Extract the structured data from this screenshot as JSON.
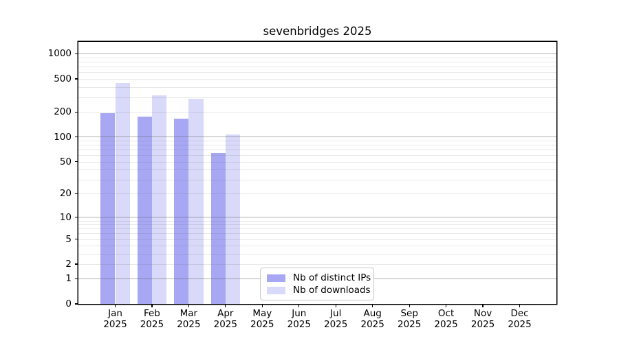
{
  "chart_data": {
    "type": "bar",
    "title": "sevenbridges 2025",
    "categories": [
      "Jan",
      "Feb",
      "Mar",
      "Apr",
      "May",
      "Jun",
      "Jul",
      "Aug",
      "Sep",
      "Oct",
      "Nov",
      "Dec"
    ],
    "x_tick_year": "2025",
    "series": [
      {
        "name": "Nb of distinct IPs",
        "color": "#a7a7f4",
        "values": [
          195,
          175,
          165,
          64,
          0,
          0,
          0,
          0,
          0,
          0,
          0,
          0
        ]
      },
      {
        "name": "Nb of downloads",
        "color": "#d9d9f9",
        "values": [
          450,
          315,
          290,
          106,
          0,
          0,
          0,
          0,
          0,
          0,
          0,
          0
        ]
      }
    ],
    "y_axis": {
      "scale": "log10(1+x)",
      "tick_labels": [
        0,
        1,
        2,
        5,
        10,
        20,
        50,
        100,
        200,
        500,
        1000
      ],
      "major_gridlines": [
        1,
        10,
        100,
        1000
      ],
      "minor_gridlines": [
        2,
        3,
        4,
        5,
        6,
        7,
        8,
        9,
        20,
        30,
        40,
        50,
        60,
        70,
        80,
        90,
        200,
        300,
        400,
        500,
        600,
        700,
        800,
        900
      ],
      "ylim": [
        0,
        1400
      ]
    },
    "legend": {
      "position": "lower center"
    },
    "grid": true,
    "colors": {
      "axis": "#000000",
      "major_grid": "#b0b0b0",
      "minor_grid": "#e8e8e8",
      "legend_border": "#c8c8c8"
    }
  }
}
